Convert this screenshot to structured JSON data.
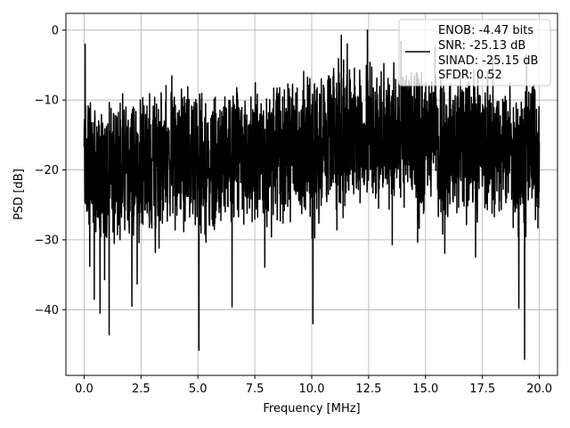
{
  "chart_data": {
    "type": "line",
    "xlabel": "Frequency [MHz]",
    "ylabel": "PSD [dB]",
    "xlim": [
      -0.8,
      20.8
    ],
    "ylim": [
      -49.4,
      2.4
    ],
    "xticks": [
      0.0,
      2.5,
      5.0,
      7.5,
      10.0,
      12.5,
      15.0,
      17.5,
      20.0
    ],
    "xtick_labels": [
      "0.0",
      "2.5",
      "5.0",
      "7.5",
      "10.0",
      "12.5",
      "15.0",
      "17.5",
      "20.0"
    ],
    "yticks": [
      0,
      -10,
      -20,
      -30,
      -40
    ],
    "ytick_labels": [
      "0",
      "−10",
      "−20",
      "−30",
      "−40"
    ],
    "grid": true,
    "legend_position": "top-right",
    "series": [
      {
        "color": "#000000",
        "x": [
          0,
          0.5,
          1,
          1.5,
          2,
          2.5,
          3,
          3.5,
          4,
          4.5,
          5,
          5.5,
          6,
          6.5,
          7,
          7.5,
          8,
          8.5,
          9,
          9.5,
          10,
          10.5,
          11,
          11.5,
          12,
          12.5,
          13,
          13.5,
          14,
          14.5,
          15,
          15.5,
          16,
          16.5,
          17,
          17.5,
          18,
          18.5,
          19,
          19.5,
          20
        ],
        "y": [
          -18,
          -20,
          -21,
          -19,
          -20,
          -19,
          -19,
          -18,
          -19,
          -18,
          -19,
          -19,
          -19,
          -18,
          -18,
          -17,
          -18,
          -17,
          -17,
          -17,
          -16,
          -16,
          -16,
          -15,
          -15,
          -14,
          -15,
          -15,
          -15,
          -16,
          -16,
          -16,
          -17,
          -16,
          -16,
          -17,
          -17,
          -17,
          -18,
          -17,
          -17
        ],
        "spikes": [
          {
            "x": 0.05,
            "y": -2.0
          },
          {
            "x": 0.25,
            "y": -33.8
          },
          {
            "x": 0.45,
            "y": -38.5
          },
          {
            "x": 0.7,
            "y": -40.5
          },
          {
            "x": 0.9,
            "y": -35.7
          },
          {
            "x": 1.1,
            "y": -43.6
          },
          {
            "x": 2.1,
            "y": -39.5
          },
          {
            "x": 5.05,
            "y": -45.8
          },
          {
            "x": 6.5,
            "y": -39.6
          },
          {
            "x": 10.05,
            "y": -42.0
          },
          {
            "x": 12.45,
            "y": 0.0
          },
          {
            "x": 19.35,
            "y": -47.1
          },
          {
            "x": 19.1,
            "y": -39.8
          }
        ]
      }
    ],
    "legend": {
      "lines": [
        "ENOB: -4.47 bits",
        "SNR: -25.13 dB",
        "SINAD: -25.15 dB",
        "SFDR: 0.52"
      ]
    }
  }
}
